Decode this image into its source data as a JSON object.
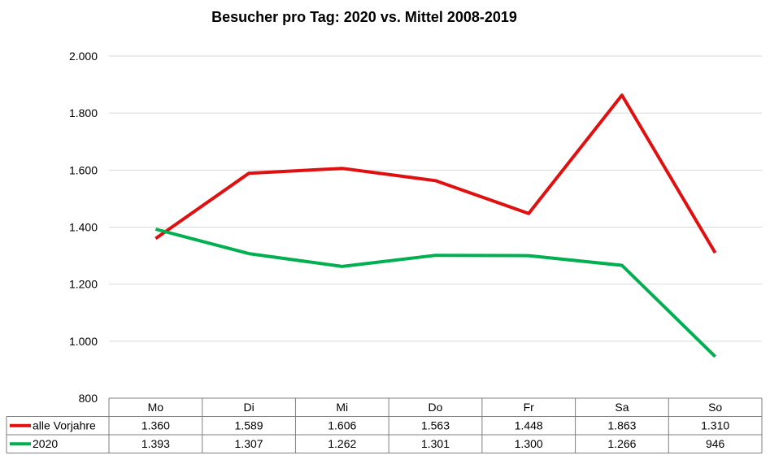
{
  "chart_data": {
    "type": "line",
    "title": "Besucher pro Tag: 2020 vs. Mittel 2008-2019",
    "categories": [
      "Mo",
      "Di",
      "Mi",
      "Do",
      "Fr",
      "Sa",
      "So"
    ],
    "ylim": [
      800,
      2000
    ],
    "yticks": [
      800,
      1000,
      1200,
      1400,
      1600,
      1800,
      2000
    ],
    "ytick_labels": [
      "800",
      "1.000",
      "1.200",
      "1.400",
      "1.600",
      "1.800",
      "2.000"
    ],
    "grid": true,
    "legend": "data-table",
    "series": [
      {
        "name": "alle Vorjahre",
        "color": "#e01010",
        "values": [
          1360,
          1589,
          1606,
          1563,
          1448,
          1863,
          1310
        ],
        "labels": [
          "1.360",
          "1.589",
          "1.606",
          "1.563",
          "1.448",
          "1.863",
          "1.310"
        ]
      },
      {
        "name": "2020",
        "color": "#00b050",
        "values": [
          1393,
          1307,
          1262,
          1301,
          1300,
          1266,
          946
        ],
        "labels": [
          "1.393",
          "1.307",
          "1.262",
          "1.301",
          "1.300",
          "1.266",
          "946"
        ]
      }
    ]
  }
}
